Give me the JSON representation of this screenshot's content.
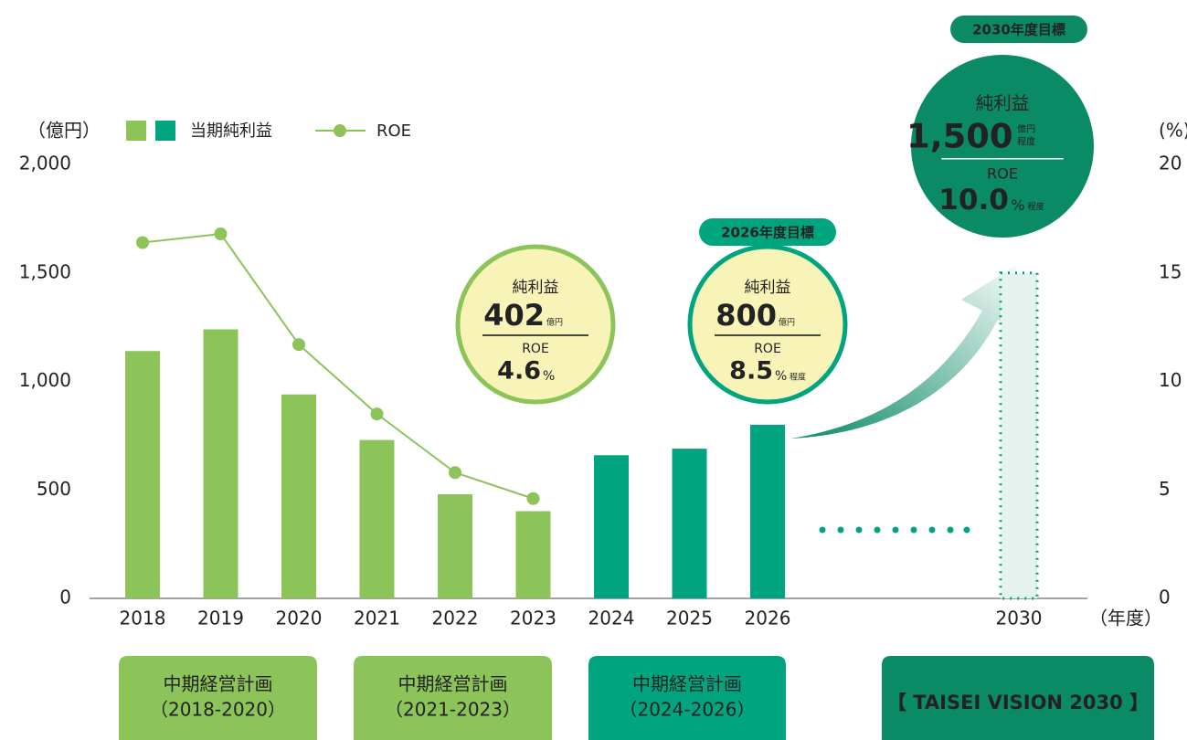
{
  "chart_data": {
    "type": "bar",
    "y_label": "（億円）",
    "y2_label": "(%)",
    "x_label": "（年度）",
    "categories": [
      "2018",
      "2019",
      "2020",
      "2021",
      "2022",
      "2023",
      "2024",
      "2025",
      "2026",
      "2030"
    ],
    "series": [
      {
        "name": "当期純利益",
        "type": "bar",
        "colors": [
          "#8cc45a",
          "#8cc45a",
          "#8cc45a",
          "#8cc45a",
          "#8cc45a",
          "#8cc45a",
          "#00a57f",
          "#00a57f",
          "#00a57f",
          "#e6f2ee"
        ],
        "values": [
          1140,
          1240,
          940,
          730,
          480,
          402,
          660,
          690,
          800,
          1500
        ]
      },
      {
        "name": "ROE",
        "type": "line",
        "color": "#8cc45a",
        "axis": "y2",
        "values": [
          16.4,
          16.8,
          11.7,
          8.5,
          5.8,
          4.6,
          null,
          null,
          null,
          null
        ]
      }
    ],
    "ylim": [
      0,
      2000
    ],
    "yticks": [
      0,
      500,
      {
        "value": 1000,
        "label": "1,000"
      },
      {
        "value": 1500,
        "label": "1,500"
      },
      {
        "value": 2000,
        "label": "2,000"
      }
    ],
    "y2lim": [
      0,
      20
    ],
    "y2ticks": [
      0,
      5,
      10,
      15,
      20
    ],
    "annotations": [
      {
        "label": "純利益",
        "value": 402,
        "unit": "億円",
        "roe_label": "ROE",
        "roe": 4.6,
        "roe_unit": "%"
      },
      {
        "badge": "2026年度目標",
        "label": "純利益",
        "value": 800,
        "unit": "億円",
        "roe_label": "ROE",
        "roe": 8.5,
        "roe_unit": "%",
        "roe_note": "程度"
      },
      {
        "badge": "2030年度目標",
        "label": "純利益",
        "value": "1,500",
        "unit": "億円",
        "unit_note": "程度",
        "roe_label": "ROE",
        "roe": "10.0",
        "roe_unit": "%",
        "roe_note": "程度"
      }
    ],
    "periods": [
      {
        "title": "中期経営計画",
        "range": "（2018-2020）"
      },
      {
        "title": "中期経営計画",
        "range": "（2021-2023）"
      },
      {
        "title": "中期経営計画",
        "range": "（2024-2026）"
      },
      {
        "title": "【 TAISEI VISION 2030 】"
      }
    ]
  }
}
